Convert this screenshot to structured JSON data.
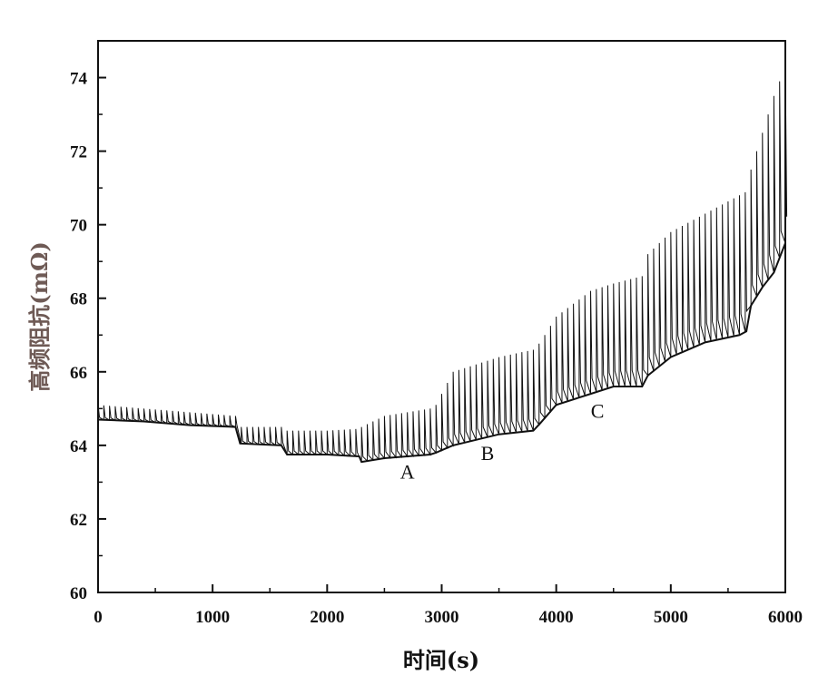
{
  "chart_data": {
    "type": "line",
    "xlabel": "时间(s)",
    "ylabel": "高频阻抗(mΩ)",
    "xlim": [
      0,
      6000
    ],
    "ylim": [
      60,
      75
    ],
    "xticks": [
      0,
      1000,
      2000,
      3000,
      4000,
      5000,
      6000
    ],
    "yticks": [
      60,
      62,
      64,
      66,
      68,
      70,
      72,
      74
    ],
    "grid": false,
    "pulse_period_s": 50,
    "lower_envelope": {
      "x": [
        0,
        400,
        800,
        1200,
        1240,
        1600,
        1650,
        2000,
        2280,
        2300,
        2500,
        2900,
        2950,
        3100,
        3500,
        3800,
        3860,
        4000,
        4300,
        4500,
        4750,
        4800,
        5000,
        5300,
        5600,
        5660,
        5700,
        5800,
        5900,
        6000
      ],
      "y": [
        64.7,
        64.65,
        64.55,
        64.5,
        64.05,
        64.0,
        63.75,
        63.75,
        63.7,
        63.55,
        63.65,
        63.75,
        63.8,
        64.0,
        64.3,
        64.4,
        64.6,
        65.1,
        65.4,
        65.6,
        65.6,
        65.9,
        66.4,
        66.8,
        67.0,
        67.1,
        67.8,
        68.3,
        68.7,
        69.5
      ]
    },
    "upper_envelope": {
      "x": [
        0,
        400,
        800,
        1200,
        1240,
        1600,
        1650,
        2000,
        2280,
        2300,
        2500,
        2900,
        2950,
        3100,
        3500,
        3800,
        3860,
        4000,
        4300,
        4500,
        4750,
        4800,
        5000,
        5300,
        5600,
        5660,
        5700,
        5800,
        5900,
        6000
      ],
      "y": [
        65.1,
        65.0,
        64.9,
        64.8,
        64.5,
        64.5,
        64.4,
        64.4,
        64.45,
        64.5,
        64.8,
        65.0,
        65.1,
        66.0,
        66.4,
        66.6,
        66.8,
        67.5,
        68.2,
        68.4,
        68.6,
        69.2,
        69.8,
        70.3,
        70.8,
        70.9,
        71.5,
        72.5,
        73.5,
        74.3
      ]
    },
    "annotations": [
      {
        "text": "A",
        "x": 2700,
        "y": 63.1
      },
      {
        "text": "B",
        "x": 3400,
        "y": 63.6
      },
      {
        "text": "C",
        "x": 4360,
        "y": 64.75
      }
    ]
  }
}
